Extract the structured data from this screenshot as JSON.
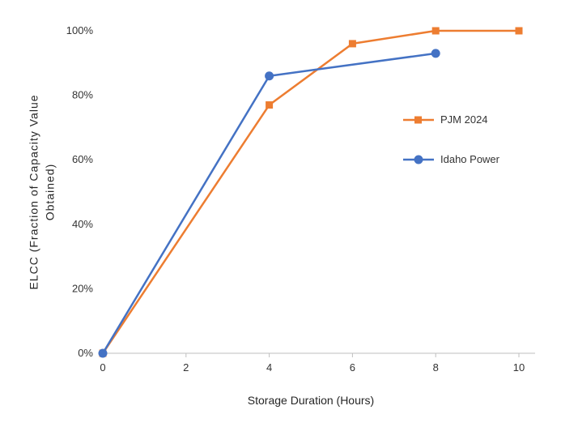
{
  "chart_data": {
    "type": "line",
    "title": "",
    "xlabel": "Storage Duration (Hours)",
    "ylabel": "ELCC (Fraction of Capacity Value Obtained)",
    "xlim": [
      0,
      10
    ],
    "ylim": [
      0,
      1
    ],
    "x_ticks": [
      "0",
      "2",
      "4",
      "6",
      "8",
      "10"
    ],
    "y_ticks": [
      "0%",
      "20%",
      "40%",
      "60%",
      "80%",
      "100%"
    ],
    "grid": false,
    "legend_position": "middle-right",
    "axis_color": "#BFBFBF",
    "series": [
      {
        "name": "PJM 2024",
        "color": "#ED7D31",
        "marker": "square",
        "points": [
          [
            0,
            0.0
          ],
          [
            4,
            0.77
          ],
          [
            6,
            0.96
          ],
          [
            8,
            1.0
          ],
          [
            10,
            1.0
          ]
        ]
      },
      {
        "name": "Idaho Power",
        "color": "#4472C4",
        "marker": "circle",
        "points": [
          [
            0,
            0.0
          ],
          [
            4,
            0.86
          ],
          [
            8,
            0.93
          ]
        ]
      }
    ]
  }
}
